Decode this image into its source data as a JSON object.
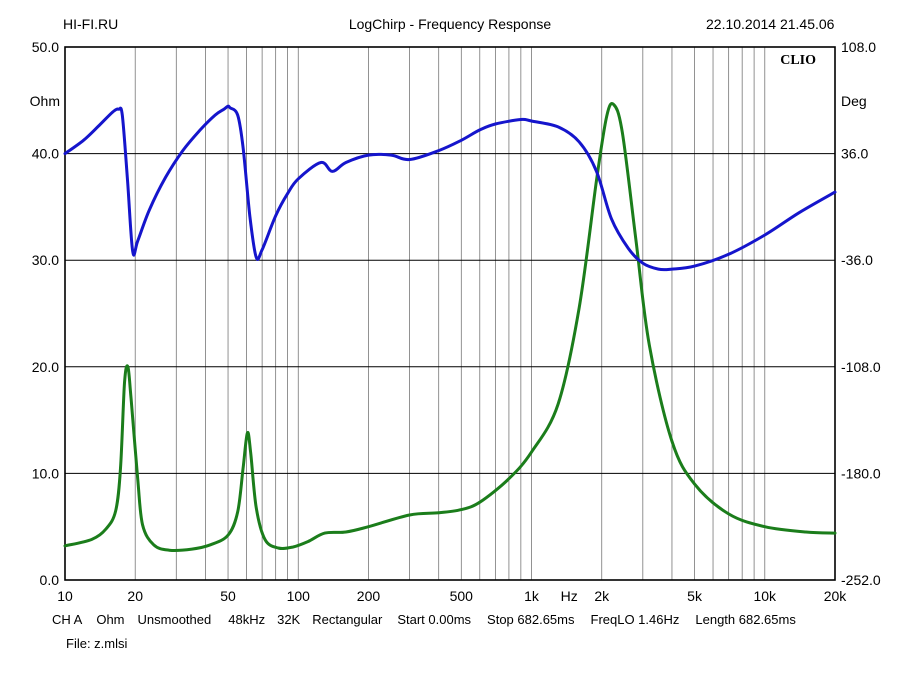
{
  "header": {
    "left": "HI-FI.RU",
    "center": "LogChirp - Frequency Response",
    "right": "22.10.2014 21.45.06"
  },
  "brand": "CLIO",
  "footer": {
    "line1": [
      "CH A",
      "Ohm",
      "Unsmoothed",
      "48kHz",
      "32K",
      "Rectangular",
      "Start 0.00ms",
      "Stop 682.65ms",
      "FreqLO 1.46Hz",
      "Length 682.65ms"
    ],
    "line2": "File: z.mlsi"
  },
  "chart_data": {
    "type": "line",
    "title": "LogChirp - Frequency Response",
    "x_scale": "log",
    "xlim": [
      10,
      20000
    ],
    "x_unit": "Hz",
    "x_ticks": [
      "10",
      "20",
      "50",
      "100",
      "200",
      "500",
      "1k",
      "2k",
      "5k",
      "10k",
      "20k"
    ],
    "y_left": {
      "label": "Ohm",
      "lim": [
        0,
        50
      ],
      "ticks": [
        "0.0",
        "10.0",
        "20.0",
        "30.0",
        "40.0",
        "50.0"
      ]
    },
    "y_right": {
      "label": "Deg",
      "lim": [
        -252,
        108
      ],
      "ticks": [
        "-252.0",
        "-180.0",
        "-108.0",
        "-36.0",
        "36.0",
        "108.0"
      ]
    },
    "grid": true,
    "series": [
      {
        "axis": "right",
        "color": "#1515cc",
        "points": [
          [
            10,
            36
          ],
          [
            12,
            45
          ],
          [
            14,
            55
          ],
          [
            16,
            64
          ],
          [
            17,
            66
          ],
          [
            17.6,
            62
          ],
          [
            18.5,
            20
          ],
          [
            19.5,
            -30
          ],
          [
            20.5,
            -23
          ],
          [
            23,
            -2
          ],
          [
            27,
            20
          ],
          [
            32,
            38
          ],
          [
            38,
            52
          ],
          [
            44,
            62
          ],
          [
            48,
            66
          ],
          [
            50,
            68
          ],
          [
            51,
            67
          ],
          [
            55,
            62
          ],
          [
            58,
            40
          ],
          [
            62,
            -6
          ],
          [
            66,
            -34
          ],
          [
            70,
            -29
          ],
          [
            80,
            -6
          ],
          [
            90,
            9
          ],
          [
            100,
            19
          ],
          [
            125,
            30
          ],
          [
            140,
            24
          ],
          [
            160,
            30
          ],
          [
            200,
            35
          ],
          [
            250,
            35
          ],
          [
            300,
            32
          ],
          [
            400,
            38
          ],
          [
            500,
            45
          ],
          [
            600,
            52
          ],
          [
            700,
            56
          ],
          [
            900,
            59
          ],
          [
            1000,
            58
          ],
          [
            1300,
            54
          ],
          [
            1600,
            44
          ],
          [
            1900,
            24
          ],
          [
            2200,
            -8
          ],
          [
            2600,
            -28
          ],
          [
            3000,
            -38
          ],
          [
            3500,
            -42
          ],
          [
            4000,
            -42
          ],
          [
            5000,
            -40
          ],
          [
            7000,
            -32
          ],
          [
            10000,
            -19
          ],
          [
            14000,
            -4
          ],
          [
            20000,
            10
          ]
        ]
      },
      {
        "axis": "left",
        "color": "#1b7d1b",
        "points": [
          [
            10,
            3.2
          ],
          [
            13,
            3.8
          ],
          [
            15,
            4.8
          ],
          [
            16.5,
            6.5
          ],
          [
            17.3,
            10.5
          ],
          [
            18,
            18.5
          ],
          [
            18.6,
            20
          ],
          [
            19.2,
            17
          ],
          [
            20.5,
            9.5
          ],
          [
            21.5,
            5.2
          ],
          [
            24,
            3.3
          ],
          [
            28,
            2.8
          ],
          [
            35,
            2.9
          ],
          [
            42,
            3.3
          ],
          [
            50,
            4.2
          ],
          [
            55,
            6.4
          ],
          [
            58,
            10.5
          ],
          [
            60.5,
            13.8
          ],
          [
            62.5,
            12
          ],
          [
            66,
            6.8
          ],
          [
            72,
            3.8
          ],
          [
            82,
            3.0
          ],
          [
            95,
            3.1
          ],
          [
            110,
            3.6
          ],
          [
            130,
            4.4
          ],
          [
            160,
            4.5
          ],
          [
            200,
            5.0
          ],
          [
            300,
            6.1
          ],
          [
            400,
            6.3
          ],
          [
            500,
            6.6
          ],
          [
            600,
            7.3
          ],
          [
            800,
            9.5
          ],
          [
            1000,
            12.0
          ],
          [
            1300,
            16.5
          ],
          [
            1600,
            25.5
          ],
          [
            1900,
            37.5
          ],
          [
            2100,
            43.5
          ],
          [
            2250,
            44.6
          ],
          [
            2450,
            42
          ],
          [
            2800,
            32
          ],
          [
            3200,
            22
          ],
          [
            4000,
            13
          ],
          [
            5000,
            9
          ],
          [
            7000,
            6.2
          ],
          [
            10000,
            5.0
          ],
          [
            15000,
            4.5
          ],
          [
            20000,
            4.4
          ]
        ]
      }
    ]
  }
}
